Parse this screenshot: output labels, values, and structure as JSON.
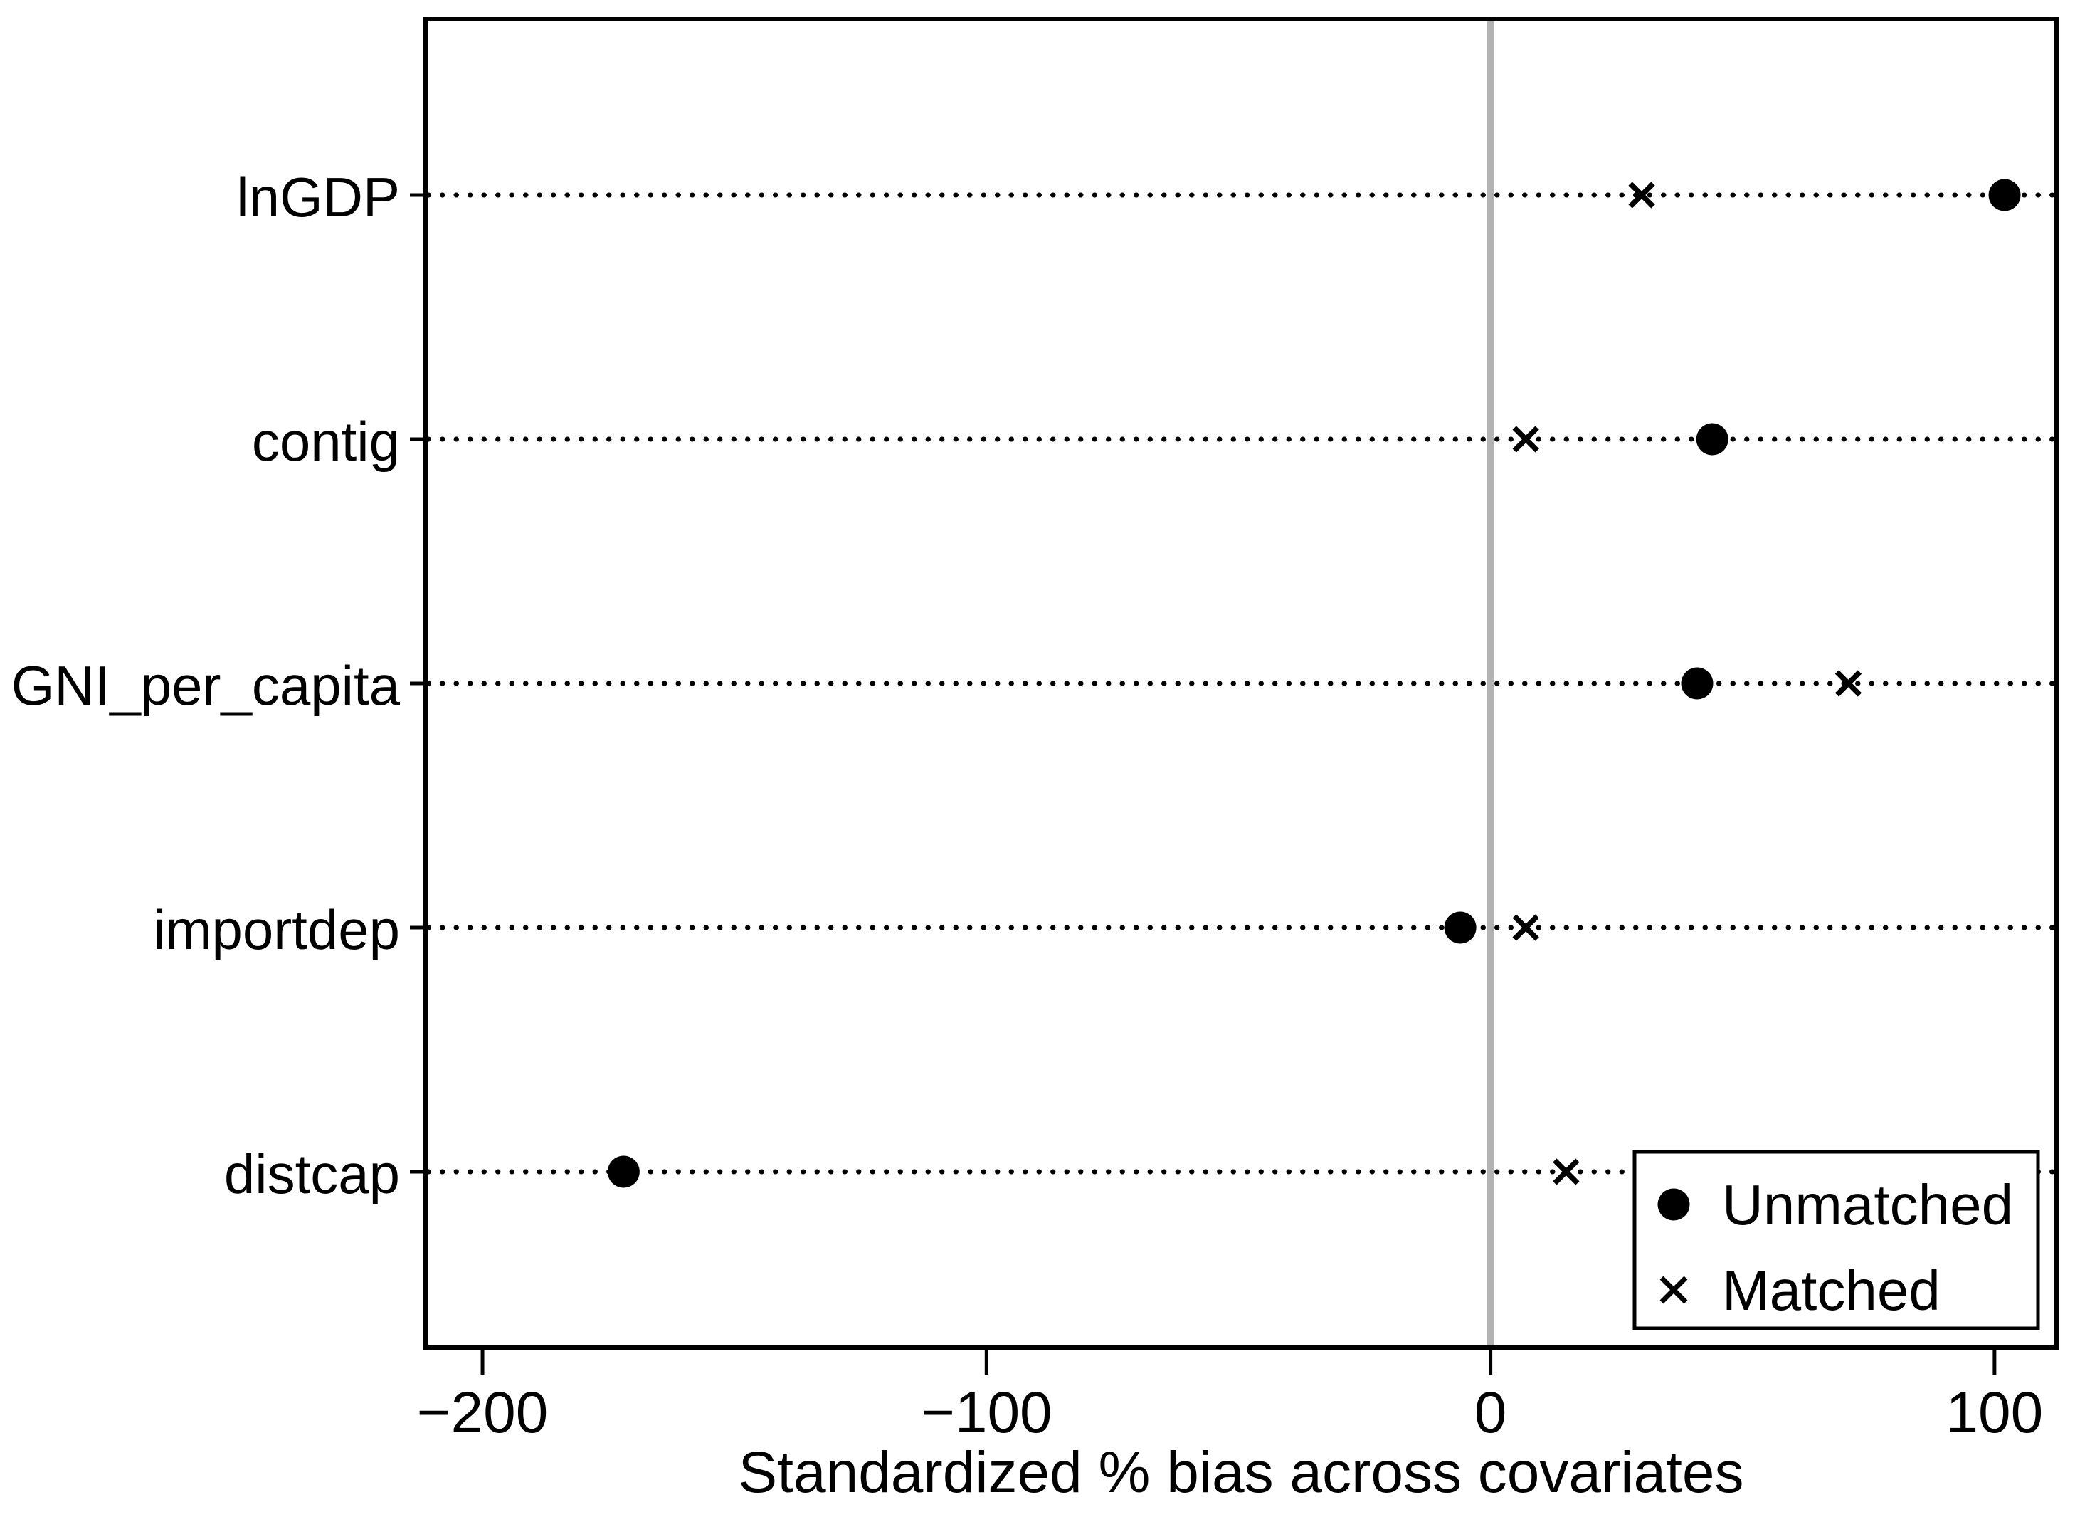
{
  "chart_data": {
    "type": "scatter",
    "title": "",
    "xlabel": "Standardized % bias across covariates",
    "ylabel": "",
    "categories": [
      "lnGDP",
      "contig",
      "GNI_per_capita",
      "importdep",
      "distcap"
    ],
    "series": [
      {
        "name": "Unmatched",
        "marker": "filled-circle",
        "values": [
          102,
          44,
          41,
          -6,
          -172
        ]
      },
      {
        "name": "Matched",
        "marker": "x-cross",
        "values": [
          30,
          7,
          71,
          7,
          15
        ]
      }
    ],
    "x_ticks": [
      {
        "value": -200,
        "label": "−200"
      },
      {
        "value": -100,
        "label": "−100"
      },
      {
        "value": 0,
        "label": "0"
      },
      {
        "value": 100,
        "label": "100"
      }
    ],
    "xlim": [
      -211.3,
      112.3
    ],
    "reference_line_x": 0,
    "grid": "horizontal-dotted-per-category",
    "legend_position": "inside-bottom-right",
    "legend_entries": [
      "Unmatched",
      "Matched"
    ]
  },
  "colors": {
    "foreground": "#000000",
    "reference_line": "#b2b2b2",
    "background": "#ffffff",
    "plot_border": "#000000"
  }
}
